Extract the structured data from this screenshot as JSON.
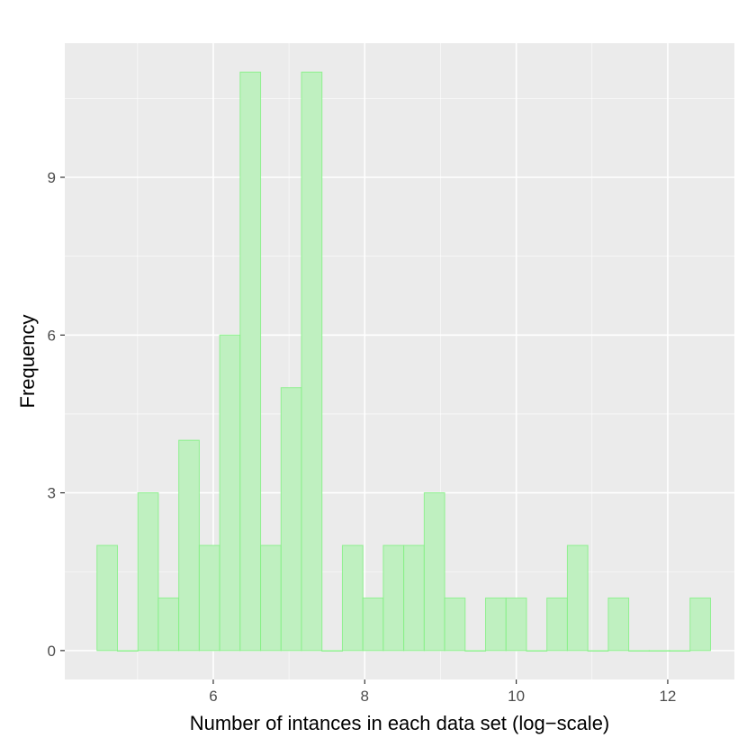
{
  "chart_data": {
    "type": "bar",
    "title": "",
    "xlabel": "Number of intances in each data set (log−scale)",
    "ylabel": "Frequency",
    "xlim": [
      4.04,
      12.88
    ],
    "ylim": [
      -0.55,
      11.55
    ],
    "x_ticks": [
      6,
      8,
      10,
      12
    ],
    "y_ticks": [
      0,
      3,
      6,
      9
    ],
    "x_tick_labels": [
      "6",
      "8",
      "10",
      "12"
    ],
    "y_tick_labels": [
      "0",
      "3",
      "6",
      "9"
    ],
    "grid": true,
    "bin_width": 0.27,
    "bin_centers": [
      4.6,
      4.87,
      5.14,
      5.41,
      5.68,
      5.95,
      6.22,
      6.49,
      6.76,
      7.03,
      7.3,
      7.57,
      7.84,
      8.11,
      8.38,
      8.65,
      8.92,
      9.19,
      9.46,
      9.73,
      10.0,
      10.27,
      10.54,
      10.81,
      11.08,
      11.35,
      11.62,
      11.89,
      12.16,
      12.43
    ],
    "values": [
      2,
      0,
      3,
      1,
      4,
      2,
      6,
      11,
      2,
      5,
      11,
      0,
      2,
      1,
      2,
      2,
      3,
      1,
      0,
      1,
      1,
      0,
      1,
      2,
      0,
      1,
      0,
      0,
      0,
      1
    ],
    "colors": {
      "panel": "#ebebeb",
      "grid_major": "#ffffff",
      "bar_fill": "#bff0c0",
      "bar_stroke": "#7ff07f"
    }
  }
}
